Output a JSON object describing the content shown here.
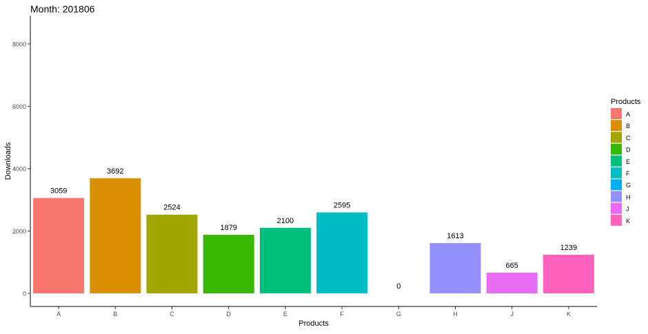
{
  "chart_data": {
    "type": "bar",
    "title": "Month: 201806",
    "xlabel": "Products",
    "ylabel": "Downloads",
    "categories": [
      "A",
      "B",
      "C",
      "D",
      "E",
      "F",
      "G",
      "H",
      "J",
      "K"
    ],
    "values": [
      3059,
      3692,
      2524,
      1879,
      2100,
      2595,
      0,
      1613,
      665,
      1239
    ],
    "data_labels": [
      "3059",
      "3692",
      "2524",
      "1879",
      "2100",
      "2595",
      "0",
      "1613",
      "665",
      "1239"
    ],
    "colors": [
      "#F8766D",
      "#D89000",
      "#A3A500",
      "#39B600",
      "#00BF7D",
      "#00BFC4",
      "#00B0F6",
      "#9590FF",
      "#E76BF3",
      "#FF62BC"
    ],
    "yticks": [
      0,
      2000,
      4000,
      6000,
      8000
    ],
    "ylim": [
      -420,
      8900
    ],
    "grid": false,
    "legend": {
      "title": "Products",
      "placement": "right",
      "entries": [
        "A",
        "B",
        "C",
        "D",
        "E",
        "F",
        "G",
        "H",
        "J",
        "K"
      ]
    }
  }
}
